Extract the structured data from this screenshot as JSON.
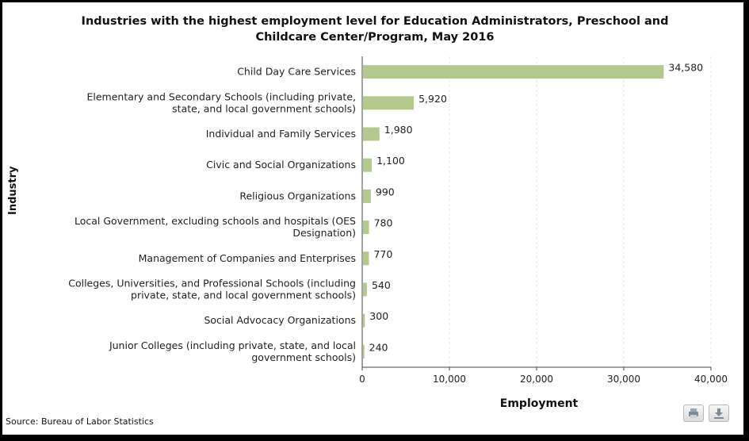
{
  "chart_data": {
    "type": "bar",
    "orientation": "horizontal",
    "title": "Industries with the highest employment level for Education Administrators, Preschool and Childcare Center/Program, May 2016",
    "xlabel": "Employment",
    "ylabel": "Industry",
    "xlim": [
      0,
      40000
    ],
    "xticks": [
      0,
      10000,
      20000,
      30000,
      40000
    ],
    "xtick_labels": [
      "0",
      "10,000",
      "20,000",
      "30,000",
      "40,000"
    ],
    "grid": true,
    "categories": [
      [
        "Child Day Care Services"
      ],
      [
        "Elementary and Secondary Schools (including private,",
        "state, and local government schools)"
      ],
      [
        "Individual and Family Services"
      ],
      [
        "Civic and Social Organizations"
      ],
      [
        "Religious Organizations"
      ],
      [
        "Local Government, excluding schools and hospitals (OES",
        "Designation)"
      ],
      [
        "Management of Companies and Enterprises"
      ],
      [
        "Colleges, Universities, and Professional Schools (including",
        "private, state, and local government schools)"
      ],
      [
        "Social Advocacy Organizations"
      ],
      [
        "Junior Colleges (including private, state, and local",
        "government schools)"
      ]
    ],
    "values": [
      34580,
      5920,
      1980,
      1100,
      990,
      780,
      770,
      540,
      300,
      240
    ],
    "value_labels": [
      "34,580",
      "5,920",
      "1,980",
      "1,100",
      "990",
      "780",
      "770",
      "540",
      "300",
      "240"
    ],
    "bar_color": "#b3c98e"
  },
  "source": "Source: Bureau of Labor Statistics",
  "toolbar": {
    "print_icon": "print-icon",
    "download_icon": "download-icon"
  }
}
